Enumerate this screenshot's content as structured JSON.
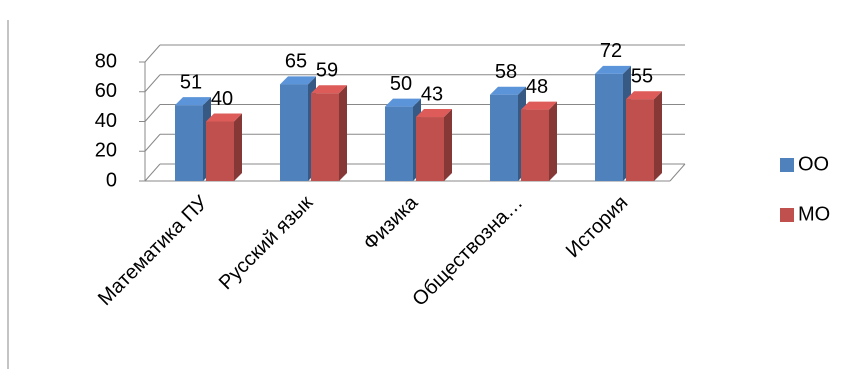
{
  "chart_data": {
    "type": "bar3d",
    "categories": [
      "Математика ПУ",
      "Русский язык",
      "Физика",
      "Обществозна…",
      "История"
    ],
    "series": [
      {
        "name": "ОО",
        "color": "#4f81bd",
        "values": [
          51,
          65,
          50,
          58,
          72
        ]
      },
      {
        "name": "МО",
        "color": "#c0504d",
        "values": [
          40,
          59,
          43,
          48,
          55
        ]
      }
    ],
    "ylim": [
      0,
      80
    ],
    "yticks": [
      0,
      20,
      40,
      60,
      80
    ],
    "grid": true,
    "legend": "right"
  }
}
